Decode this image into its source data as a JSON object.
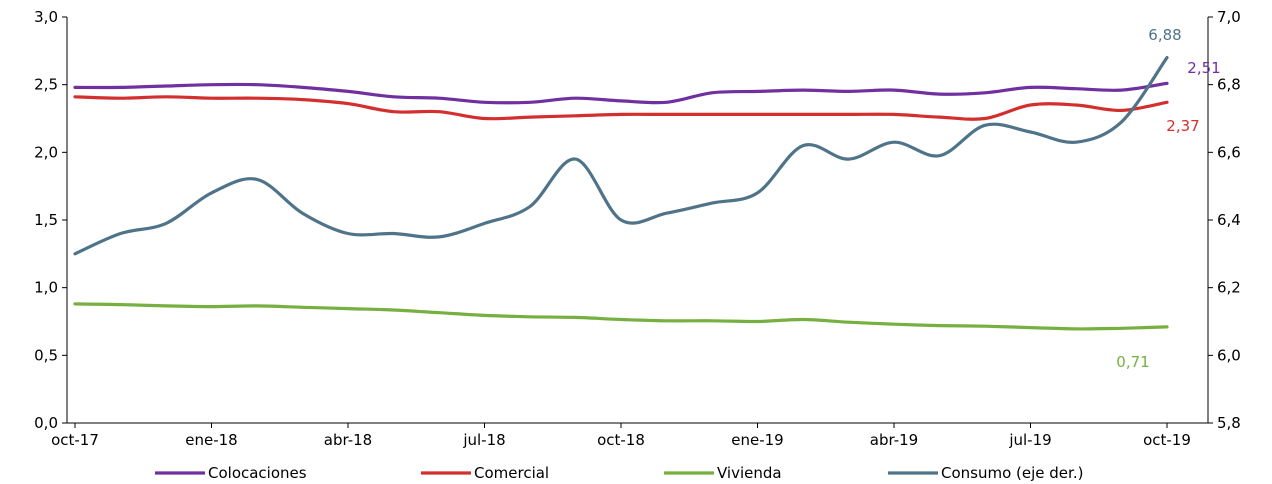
{
  "chart_data": {
    "type": "line",
    "categories": [
      "oct-17",
      "nov-17",
      "dic-17",
      "ene-18",
      "feb-18",
      "mar-18",
      "abr-18",
      "may-18",
      "jun-18",
      "jul-18",
      "ago-18",
      "sep-18",
      "oct-18",
      "nov-18",
      "dic-18",
      "ene-19",
      "feb-19",
      "mar-19",
      "abr-19",
      "may-19",
      "jun-19",
      "jul-19",
      "ago-19",
      "sep-19",
      "oct-19"
    ],
    "x_tick_labels": [
      "oct-17",
      "ene-18",
      "abr-18",
      "jul-18",
      "oct-18",
      "ene-19",
      "abr-19",
      "jul-19",
      "oct-19"
    ],
    "y_left": {
      "min": 0,
      "max": 3.0,
      "step": 0.5,
      "tick_labels": [
        "0,0",
        "0,5",
        "1,0",
        "1,5",
        "2,0",
        "2,5",
        "3,0"
      ]
    },
    "y_right": {
      "min": 5.8,
      "max": 7.0,
      "step": 0.2,
      "tick_labels": [
        "5,8",
        "6,0",
        "6,2",
        "6,4",
        "6,6",
        "6,8",
        "7,0"
      ]
    },
    "legend_position": "bottom",
    "series": [
      {
        "name": "Colocaciones",
        "axis": "left",
        "color": "#7030a0",
        "values": [
          2.48,
          2.48,
          2.49,
          2.5,
          2.5,
          2.48,
          2.45,
          2.41,
          2.4,
          2.37,
          2.37,
          2.4,
          2.38,
          2.37,
          2.44,
          2.45,
          2.46,
          2.45,
          2.46,
          2.43,
          2.44,
          2.48,
          2.47,
          2.46,
          2.51
        ],
        "end_label": "2,51"
      },
      {
        "name": "Comercial",
        "axis": "left",
        "color": "#d32f2f",
        "values": [
          2.41,
          2.4,
          2.41,
          2.4,
          2.4,
          2.39,
          2.36,
          2.3,
          2.3,
          2.25,
          2.26,
          2.27,
          2.28,
          2.28,
          2.28,
          2.28,
          2.28,
          2.28,
          2.28,
          2.26,
          2.25,
          2.35,
          2.35,
          2.31,
          2.37
        ],
        "end_label": "2,37"
      },
      {
        "name": "Vivienda",
        "axis": "left",
        "color": "#76b041",
        "values": [
          0.88,
          0.875,
          0.865,
          0.86,
          0.865,
          0.855,
          0.845,
          0.835,
          0.815,
          0.795,
          0.785,
          0.78,
          0.765,
          0.755,
          0.755,
          0.75,
          0.765,
          0.745,
          0.73,
          0.72,
          0.715,
          0.705,
          0.695,
          0.7,
          0.71
        ],
        "end_label": "0,71"
      },
      {
        "name": "Consumo (eje der.)",
        "axis": "right",
        "color": "#4f7489",
        "values": [
          6.3,
          6.36,
          6.39,
          6.48,
          6.52,
          6.42,
          6.36,
          6.36,
          6.35,
          6.39,
          6.44,
          6.58,
          6.4,
          6.42,
          6.45,
          6.48,
          6.62,
          6.58,
          6.63,
          6.59,
          6.68,
          6.66,
          6.63,
          6.69,
          6.88
        ],
        "end_label": "6,88"
      }
    ]
  }
}
